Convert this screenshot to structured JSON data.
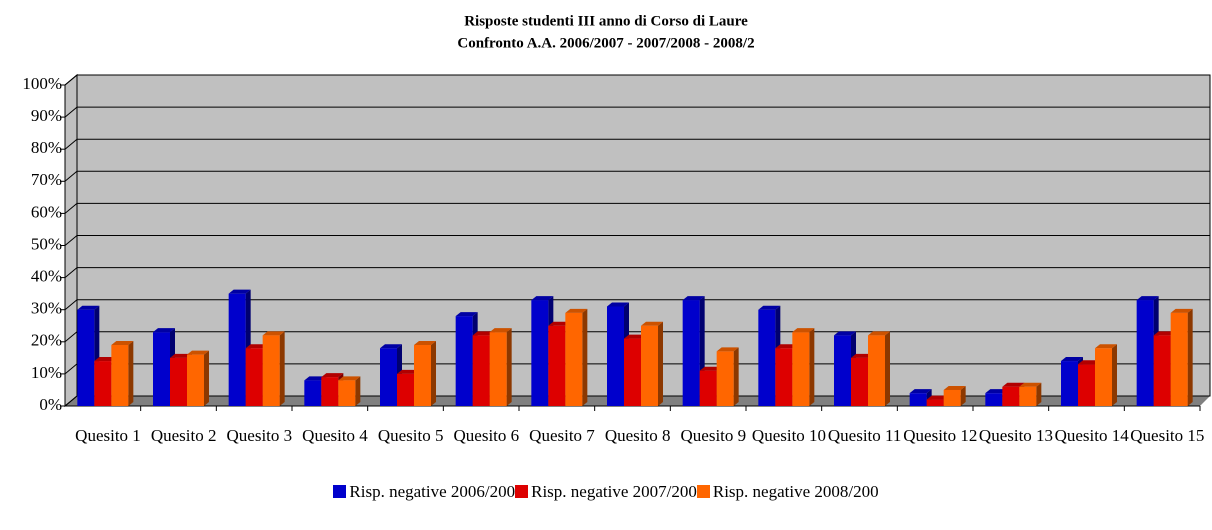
{
  "chart_data": {
    "type": "bar",
    "title": "Risposte studenti III anno di Corso di Laure",
    "subtitle": "Confronto A.A. 2006/2007 - 2007/2008 - 2008/2",
    "categories": [
      "Quesito 1",
      "Quesito 2",
      "Quesito 3",
      "Quesito 4",
      "Quesito 5",
      "Quesito 6",
      "Quesito 7",
      "Quesito 8",
      "Quesito 9",
      "Quesito 10",
      "Quesito 11",
      "Quesito 12",
      "Quesito 13",
      "Quesito 14",
      "Quesito 15"
    ],
    "series": [
      {
        "name": "Risp. negative 2006/200",
        "color": "#0000cc",
        "values": [
          30,
          23,
          35,
          8,
          18,
          28,
          33,
          31,
          33,
          30,
          22,
          4,
          4,
          14,
          33
        ]
      },
      {
        "name": "Risp. negative 2007/200",
        "color": "#dd0000",
        "values": [
          14,
          15,
          18,
          9,
          10,
          22,
          25,
          21,
          11,
          18,
          15,
          2,
          6,
          13,
          22
        ]
      },
      {
        "name": "Risp. negative 2008/200",
        "color": "#ff6600",
        "values": [
          19,
          16,
          22,
          8,
          19,
          23,
          29,
          25,
          17,
          23,
          22,
          5,
          6,
          18,
          29
        ]
      }
    ],
    "ylim": [
      0,
      100
    ],
    "yticks": [
      {
        "value": 0,
        "label": "0%"
      },
      {
        "value": 10,
        "label": "10%"
      },
      {
        "value": 20,
        "label": "20%"
      },
      {
        "value": 30,
        "label": "30%"
      },
      {
        "value": 40,
        "label": "40%"
      },
      {
        "value": 50,
        "label": "50%"
      },
      {
        "value": 60,
        "label": "60%"
      },
      {
        "value": 70,
        "label": "70%"
      },
      {
        "value": 80,
        "label": "80%"
      },
      {
        "value": 90,
        "label": "90%"
      },
      {
        "value": 100,
        "label": "100%"
      }
    ],
    "grid": true
  }
}
